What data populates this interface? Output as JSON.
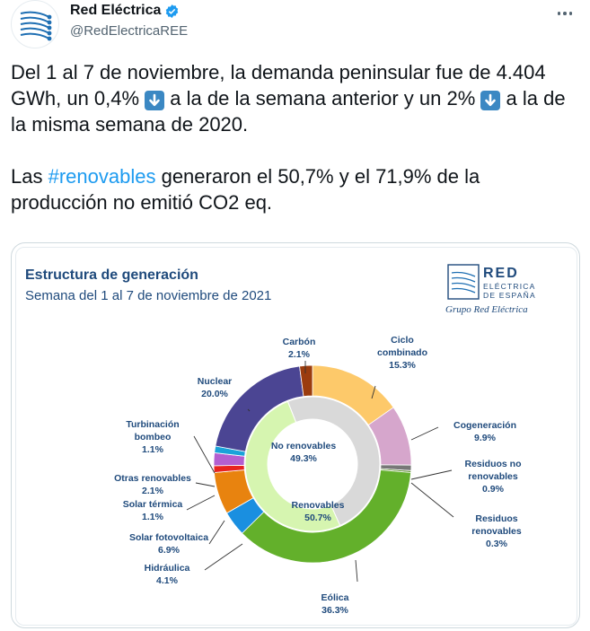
{
  "account": {
    "display_name": "Red Eléctrica",
    "handle": "@RedElectricaREE",
    "avatar_icon": "ree-logo-icon",
    "verified_icon": "verified-badge-icon"
  },
  "tweet": {
    "line1_a": "Del 1 al 7 de noviembre, la demanda peninsular fue de 4.404 GWh, un 0,4% ",
    "line1_b": " a la de la semana anterior y un 2% ",
    "line1_c": " a la de la misma semana de 2020.",
    "line2_a": "Las ",
    "hashtag": "#renovables",
    "line2_b": " generaron el 50,7% y el 71,9% de la producción no emitió CO2 eq.",
    "emoji_icon": "down-arrow-icon"
  },
  "card": {
    "title": "Estructura de generación",
    "subtitle": "Semana del 1 al 7 de noviembre de 2021",
    "logo_line1": "RED",
    "logo_line2": "ELÉCTRICA",
    "logo_line3": "DE ESPAÑA",
    "logo_group": "Grupo Red Eléctrica"
  },
  "chart_data": {
    "type": "pie",
    "title": "Estructura de generación",
    "subtitle": "Semana del 1 al 7 de noviembre de 2021",
    "inner": [
      {
        "name": "No renovables",
        "pct_label": "49.3%",
        "value": 49.3,
        "color": "#d9d9d9"
      },
      {
        "name": "Renovables",
        "pct_label": "50.7%",
        "value": 50.7,
        "color": "#d6f5b0"
      }
    ],
    "outer": [
      {
        "name": "Ciclo combinado",
        "lines": [
          "Ciclo",
          "combinado"
        ],
        "pct_label": "15.3%",
        "value": 15.3,
        "color": "#fdc96a"
      },
      {
        "name": "Cogeneración",
        "lines": [
          "Cogeneración"
        ],
        "pct_label": "9.9%",
        "value": 9.9,
        "color": "#d6a6cc"
      },
      {
        "name": "Residuos no renovables",
        "lines": [
          "Residuos no",
          "renovables"
        ],
        "pct_label": "0.9%",
        "value": 0.9,
        "color": "#777777"
      },
      {
        "name": "Residuos renovables",
        "lines": [
          "Residuos",
          "renovables"
        ],
        "pct_label": "0.3%",
        "value": 0.3,
        "color": "#5a8c2a"
      },
      {
        "name": "Eólica",
        "lines": [
          "Eólica"
        ],
        "pct_label": "36.3%",
        "value": 36.3,
        "color": "#63b02b"
      },
      {
        "name": "Hidráulica",
        "lines": [
          "Hidráulica"
        ],
        "pct_label": "4.1%",
        "value": 4.1,
        "color": "#1a8fe0"
      },
      {
        "name": "Solar fotovoltaica",
        "lines": [
          "Solar fotovoltaica"
        ],
        "pct_label": "6.9%",
        "value": 6.9,
        "color": "#e8830f"
      },
      {
        "name": "Solar térmica",
        "lines": [
          "Solar térmica"
        ],
        "pct_label": "1.1%",
        "value": 1.1,
        "color": "#e8231f"
      },
      {
        "name": "Otras renovables",
        "lines": [
          "Otras renovables"
        ],
        "pct_label": "2.1%",
        "value": 2.1,
        "color": "#b35fd0"
      },
      {
        "name": "Turbinación bombeo",
        "lines": [
          "Turbinación",
          "bombeo"
        ],
        "pct_label": "1.1%",
        "value": 1.1,
        "color": "#1aa3d9"
      },
      {
        "name": "Nuclear",
        "lines": [
          "Nuclear"
        ],
        "pct_label": "20.0%",
        "value": 20.0,
        "color": "#4b4593"
      },
      {
        "name": "Carbón",
        "lines": [
          "Carbón"
        ],
        "pct_label": "2.1%",
        "value": 2.1,
        "color": "#9b3c0e"
      }
    ]
  }
}
